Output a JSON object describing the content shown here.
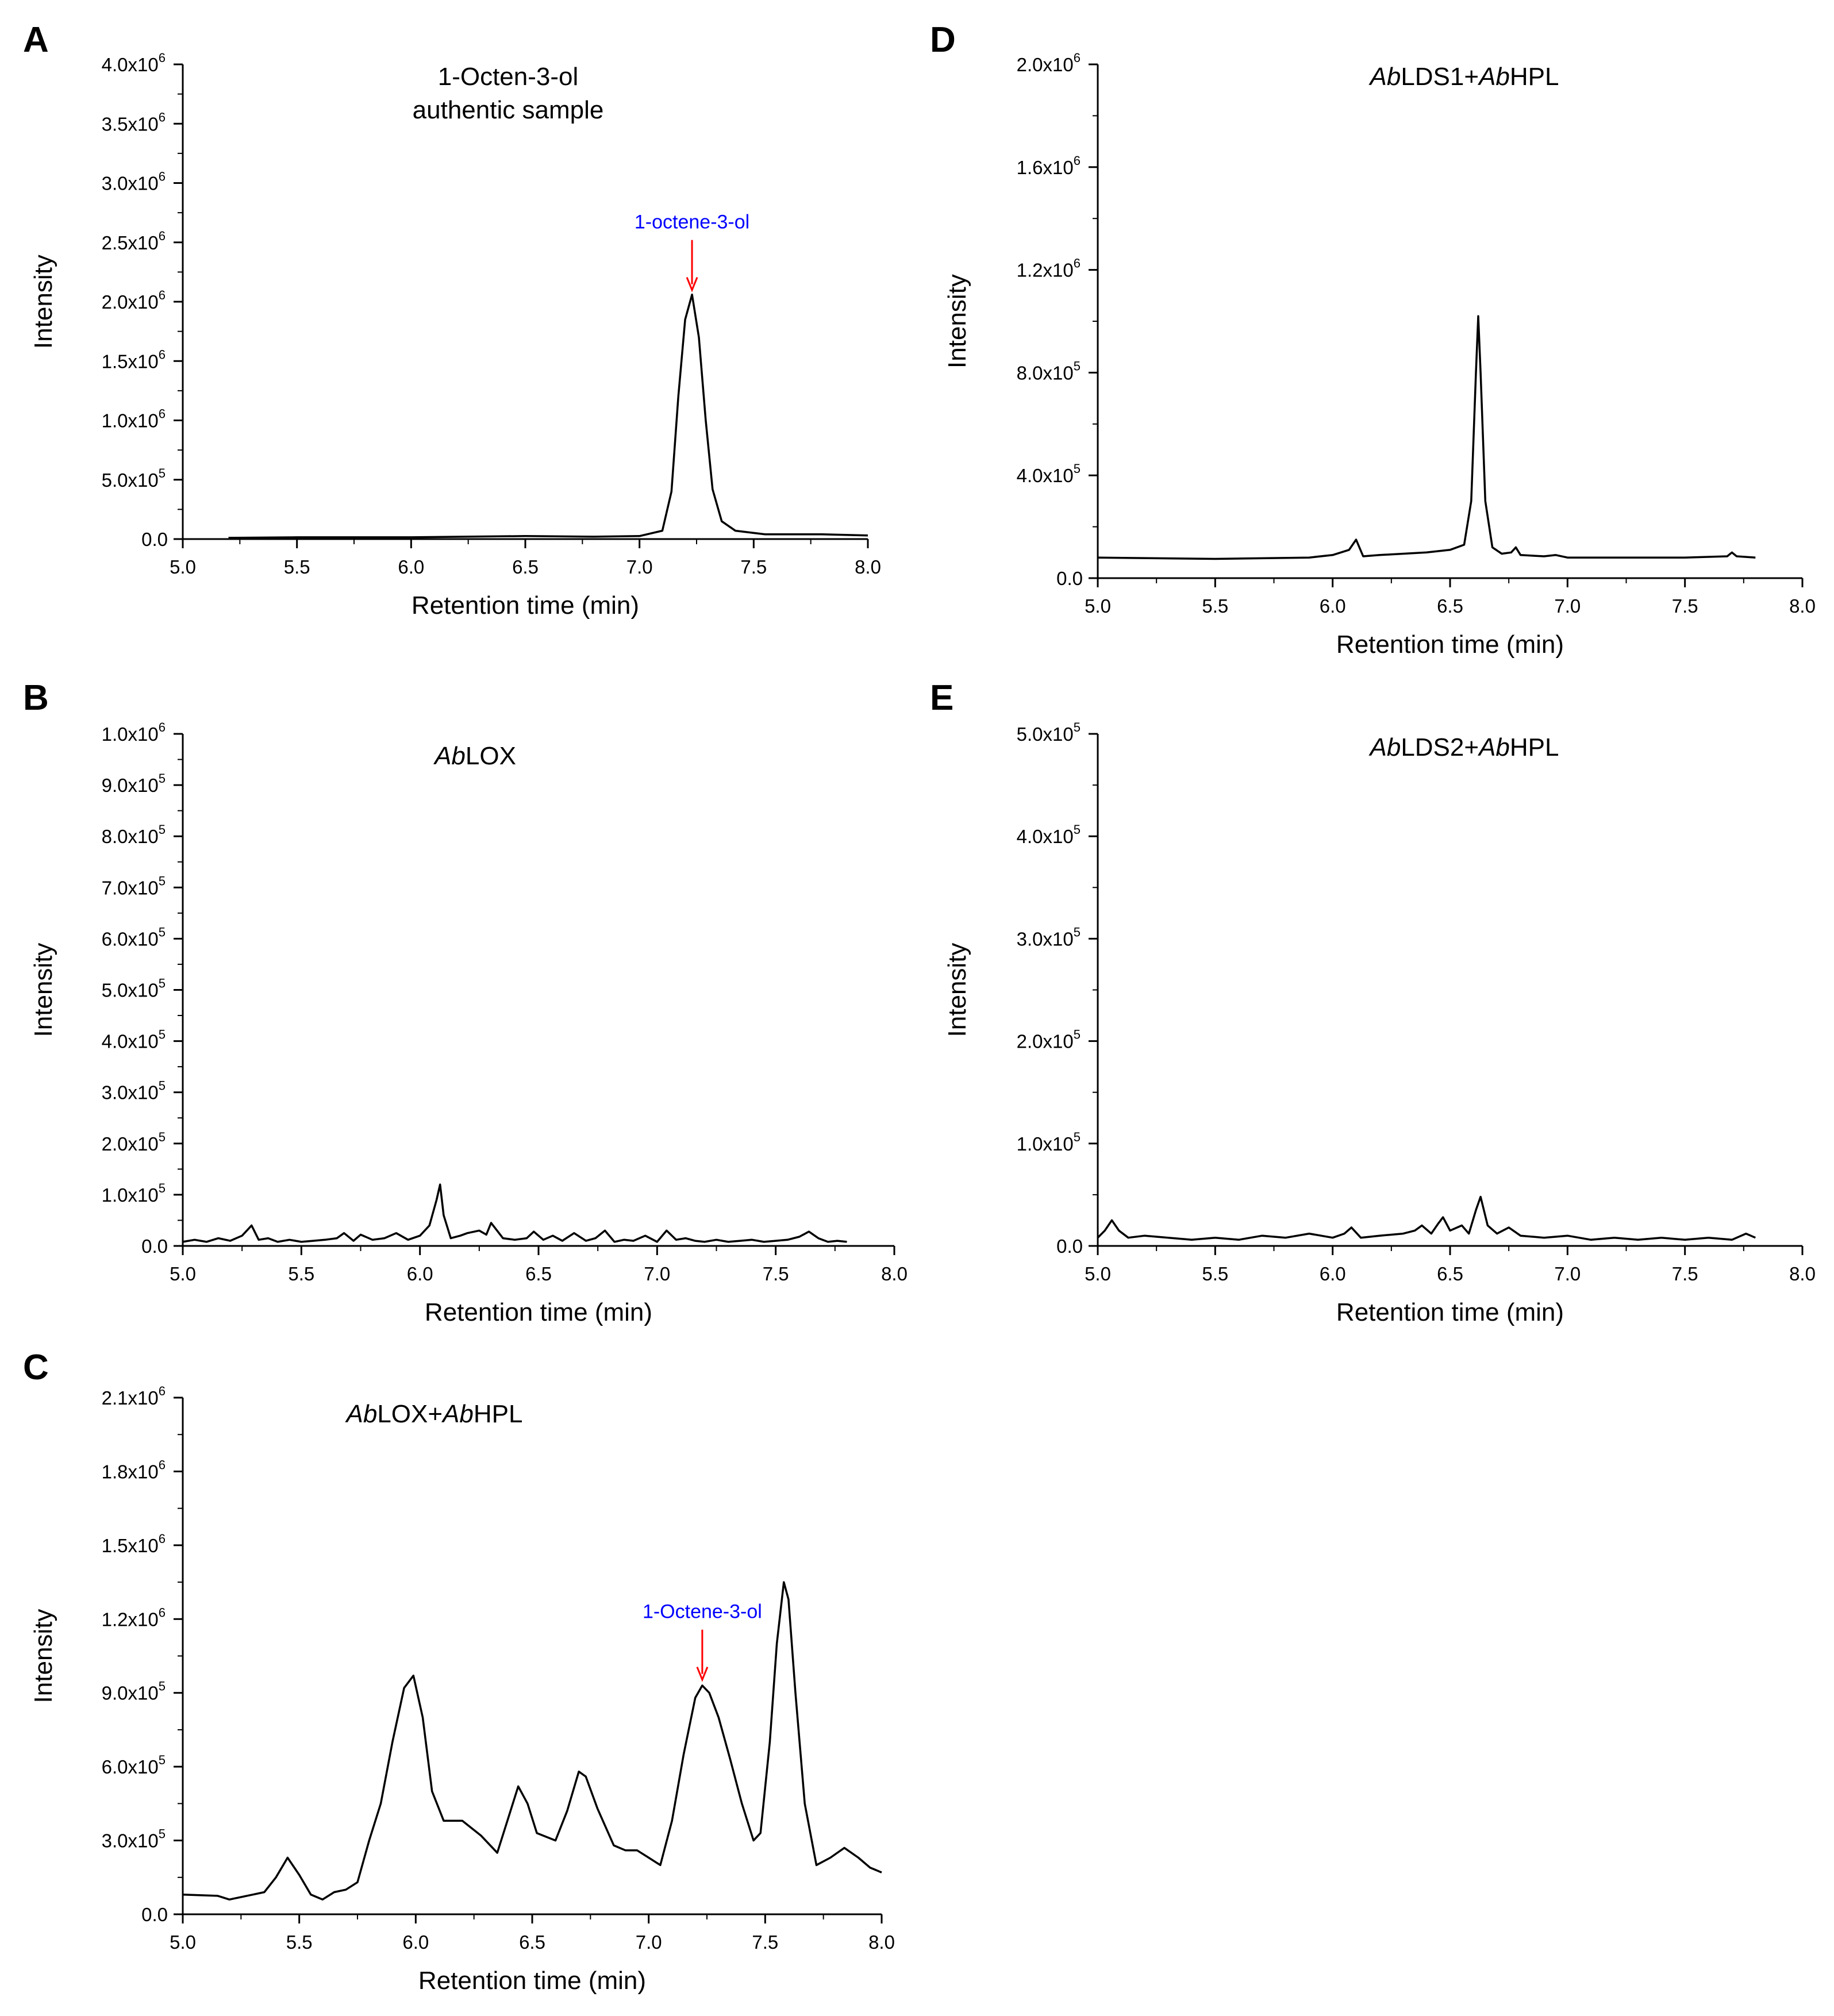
{
  "figure": {
    "panels": [
      {
        "label": "A",
        "title": [
          "1-Octen-3-ol",
          "authentic sample"
        ],
        "ylabel": "Intensity",
        "xlabel": "Retention time (min)",
        "annotations": [
          {
            "text": "1-octene-3-ol",
            "x": 7.23,
            "y": 2060000,
            "text_color": "#0000ff",
            "arrow_color": "#ff0000"
          }
        ]
      },
      {
        "label": "B",
        "title": [
          [
            "Ab",
            "LOX"
          ]
        ],
        "ylabel": "Intensity",
        "xlabel": "Retention time (min)",
        "annotations": []
      },
      {
        "label": "C",
        "title": [
          [
            "Ab",
            "LOX+",
            "Ab",
            "HPL"
          ]
        ],
        "ylabel": "Intensity",
        "xlabel": "Retention time (min)",
        "annotations": [
          {
            "text": "1-Octene-3-ol",
            "x": 7.23,
            "y": 935000,
            "text_color": "#0000ff",
            "arrow_color": "#ff0000"
          }
        ]
      },
      {
        "label": "D",
        "title": [
          [
            "Ab",
            "LDS1+",
            "Ab",
            "HPL"
          ]
        ],
        "ylabel": "Intensity",
        "xlabel": "Retention time (min)",
        "annotations": []
      },
      {
        "label": "E",
        "title": [
          [
            "Ab",
            "LDS2+",
            "Ab",
            "HPL"
          ]
        ],
        "ylabel": "Intensity",
        "xlabel": "Retention time (min)",
        "annotations": []
      }
    ]
  },
  "chart_data": [
    {
      "type": "line",
      "xlim": [
        5.0,
        8.0
      ],
      "ylim": [
        0,
        4000000
      ],
      "x_ticks": [
        5.0,
        5.5,
        6.0,
        6.5,
        7.0,
        7.5,
        8.0
      ],
      "x_tick_labels": [
        "5.0",
        "5.5",
        "6.0",
        "6.5",
        "7.0",
        "7.5",
        "8.0"
      ],
      "y_ticks": [
        0,
        500000,
        1000000,
        1500000,
        2000000,
        2500000,
        3000000,
        3500000,
        4000000
      ],
      "y_tick_labels": [
        [
          "0.0",
          ""
        ],
        [
          "5.0x10",
          "5"
        ],
        [
          "1.0x10",
          "6"
        ],
        [
          "1.5x10",
          "6"
        ],
        [
          "2.0x10",
          "6"
        ],
        [
          "2.5x10",
          "6"
        ],
        [
          "3.0x10",
          "6"
        ],
        [
          "3.5x10",
          "6"
        ],
        [
          "4.0x10",
          "6"
        ]
      ],
      "grid": false,
      "series": [
        {
          "x": [
            5.2,
            5.5,
            6.0,
            6.5,
            6.8,
            7.0,
            7.1,
            7.14,
            7.17,
            7.2,
            7.23,
            7.26,
            7.29,
            7.32,
            7.36,
            7.42,
            7.55,
            7.8,
            8.0
          ],
          "y": [
            10000,
            15000,
            15000,
            25000,
            20000,
            25000,
            70000,
            400000,
            1200000,
            1850000,
            2060000,
            1700000,
            1000000,
            420000,
            150000,
            70000,
            40000,
            40000,
            30000
          ]
        }
      ]
    },
    {
      "type": "line",
      "xlim": [
        5.0,
        8.0
      ],
      "ylim": [
        0,
        1000000
      ],
      "x_ticks": [
        5.0,
        5.5,
        6.0,
        6.5,
        7.0,
        7.5,
        8.0
      ],
      "x_tick_labels": [
        "5.0",
        "5.5",
        "6.0",
        "6.5",
        "7.0",
        "7.5",
        "8.0"
      ],
      "y_ticks": [
        0,
        100000,
        200000,
        300000,
        400000,
        500000,
        600000,
        700000,
        800000,
        900000,
        1000000
      ],
      "y_tick_labels": [
        [
          "0.0",
          ""
        ],
        [
          "1.0x10",
          "5"
        ],
        [
          "2.0x10",
          "5"
        ],
        [
          "3.0x10",
          "5"
        ],
        [
          "4.0x10",
          "5"
        ],
        [
          "5.0x10",
          "5"
        ],
        [
          "6.0x10",
          "5"
        ],
        [
          "7.0x10",
          "5"
        ],
        [
          "8.0x10",
          "5"
        ],
        [
          "9.0x10",
          "5"
        ],
        [
          "1.0x10",
          "6"
        ]
      ],
      "grid": false,
      "series": [
        {
          "x": [
            5.0,
            5.05,
            5.1,
            5.15,
            5.2,
            5.25,
            5.29,
            5.32,
            5.36,
            5.4,
            5.45,
            5.5,
            5.55,
            5.6,
            5.65,
            5.68,
            5.72,
            5.75,
            5.8,
            5.85,
            5.9,
            5.95,
            6.0,
            6.04,
            6.07,
            6.085,
            6.1,
            6.13,
            6.17,
            6.2,
            6.25,
            6.28,
            6.3,
            6.35,
            6.4,
            6.45,
            6.48,
            6.52,
            6.56,
            6.6,
            6.65,
            6.7,
            6.74,
            6.78,
            6.82,
            6.86,
            6.9,
            6.95,
            7.0,
            7.04,
            7.08,
            7.12,
            7.16,
            7.2,
            7.25,
            7.3,
            7.35,
            7.4,
            7.45,
            7.5,
            7.55,
            7.6,
            7.64,
            7.68,
            7.72,
            7.76,
            7.8
          ],
          "y": [
            8000,
            12000,
            8000,
            15000,
            10000,
            20000,
            40000,
            12000,
            15000,
            8000,
            12000,
            8000,
            10000,
            12000,
            15000,
            25000,
            10000,
            22000,
            12000,
            15000,
            25000,
            12000,
            20000,
            40000,
            90000,
            120000,
            60000,
            15000,
            20000,
            25000,
            30000,
            22000,
            45000,
            15000,
            12000,
            15000,
            28000,
            12000,
            20000,
            10000,
            25000,
            10000,
            15000,
            30000,
            8000,
            12000,
            10000,
            20000,
            8000,
            30000,
            12000,
            15000,
            10000,
            8000,
            12000,
            8000,
            10000,
            12000,
            8000,
            10000,
            12000,
            18000,
            28000,
            15000,
            8000,
            10000,
            8000
          ]
        }
      ]
    },
    {
      "type": "line",
      "xlim": [
        5.0,
        8.0
      ],
      "ylim": [
        0,
        2100000
      ],
      "x_ticks": [
        5.0,
        5.5,
        6.0,
        6.5,
        7.0,
        7.5,
        8.0
      ],
      "x_tick_labels": [
        "5.0",
        "5.5",
        "6.0",
        "6.5",
        "7.0",
        "7.5",
        "8.0"
      ],
      "y_ticks": [
        0,
        300000,
        600000,
        900000,
        1200000,
        1500000,
        1800000,
        2100000
      ],
      "y_tick_labels": [
        [
          "0.0",
          ""
        ],
        [
          "3.0x10",
          "5"
        ],
        [
          "6.0x10",
          "5"
        ],
        [
          "9.0x10",
          "5"
        ],
        [
          "1.2x10",
          "6"
        ],
        [
          "1.5x10",
          "6"
        ],
        [
          "1.8x10",
          "6"
        ],
        [
          "2.1x10",
          "6"
        ]
      ],
      "grid": false,
      "series": [
        {
          "x": [
            5.0,
            5.15,
            5.2,
            5.3,
            5.35,
            5.4,
            5.45,
            5.5,
            5.55,
            5.6,
            5.65,
            5.7,
            5.75,
            5.8,
            5.85,
            5.9,
            5.95,
            5.99,
            6.03,
            6.07,
            6.12,
            6.2,
            6.28,
            6.35,
            6.4,
            6.44,
            6.48,
            6.52,
            6.6,
            6.65,
            6.7,
            6.73,
            6.78,
            6.85,
            6.9,
            6.95,
            7.0,
            7.05,
            7.1,
            7.15,
            7.2,
            7.23,
            7.26,
            7.3,
            7.35,
            7.4,
            7.45,
            7.48,
            7.52,
            7.55,
            7.58,
            7.6,
            7.63,
            7.67,
            7.72,
            7.78,
            7.84,
            7.9,
            7.95,
            8.0
          ],
          "y": [
            80000,
            75000,
            60000,
            80000,
            90000,
            150000,
            230000,
            160000,
            80000,
            60000,
            90000,
            100000,
            130000,
            300000,
            450000,
            700000,
            920000,
            970000,
            800000,
            500000,
            380000,
            380000,
            320000,
            250000,
            400000,
            520000,
            450000,
            330000,
            300000,
            420000,
            580000,
            560000,
            430000,
            280000,
            260000,
            260000,
            230000,
            200000,
            380000,
            650000,
            880000,
            930000,
            900000,
            800000,
            630000,
            450000,
            300000,
            330000,
            700000,
            1100000,
            1350000,
            1280000,
            900000,
            450000,
            200000,
            230000,
            270000,
            230000,
            190000,
            170000
          ]
        }
      ]
    },
    {
      "type": "line",
      "xlim": [
        5.0,
        8.0
      ],
      "ylim": [
        0,
        2000000
      ],
      "x_ticks": [
        5.0,
        5.5,
        6.0,
        6.5,
        7.0,
        7.5,
        8.0
      ],
      "x_tick_labels": [
        "5.0",
        "5.5",
        "6.0",
        "6.5",
        "7.0",
        "7.5",
        "8.0"
      ],
      "y_ticks": [
        0,
        400000,
        800000,
        1200000,
        1600000,
        2000000
      ],
      "y_tick_labels": [
        [
          "0.0",
          ""
        ],
        [
          "4.0x10",
          "5"
        ],
        [
          "8.0x10",
          "5"
        ],
        [
          "1.2x10",
          "6"
        ],
        [
          "1.6x10",
          "6"
        ],
        [
          "2.0x10",
          "6"
        ]
      ],
      "grid": false,
      "series": [
        {
          "x": [
            5.0,
            5.5,
            5.9,
            6.0,
            6.07,
            6.1,
            6.13,
            6.2,
            6.4,
            6.5,
            6.56,
            6.59,
            6.61,
            6.62,
            6.63,
            6.65,
            6.68,
            6.72,
            6.76,
            6.78,
            6.8,
            6.9,
            6.95,
            7.0,
            7.5,
            7.68,
            7.7,
            7.72,
            7.8
          ],
          "y": [
            80000,
            75000,
            80000,
            90000,
            110000,
            150000,
            85000,
            90000,
            100000,
            110000,
            130000,
            300000,
            800000,
            1020000,
            800000,
            300000,
            120000,
            95000,
            100000,
            120000,
            90000,
            85000,
            90000,
            80000,
            80000,
            85000,
            100000,
            85000,
            80000
          ]
        }
      ]
    },
    {
      "type": "line",
      "xlim": [
        5.0,
        8.0
      ],
      "ylim": [
        0,
        500000
      ],
      "x_ticks": [
        5.0,
        5.5,
        6.0,
        6.5,
        7.0,
        7.5,
        8.0
      ],
      "x_tick_labels": [
        "5.0",
        "5.5",
        "6.0",
        "6.5",
        "7.0",
        "7.5",
        "8.0"
      ],
      "y_ticks": [
        0,
        100000,
        200000,
        300000,
        400000,
        500000
      ],
      "y_tick_labels": [
        [
          "0.0",
          ""
        ],
        [
          "1.0x10",
          "5"
        ],
        [
          "2.0x10",
          "5"
        ],
        [
          "3.0x10",
          "5"
        ],
        [
          "4.0x10",
          "5"
        ],
        [
          "5.0x10",
          "5"
        ]
      ],
      "grid": false,
      "series": [
        {
          "x": [
            5.0,
            5.03,
            5.06,
            5.09,
            5.13,
            5.2,
            5.3,
            5.4,
            5.5,
            5.6,
            5.7,
            5.8,
            5.9,
            6.0,
            6.05,
            6.08,
            6.12,
            6.2,
            6.3,
            6.35,
            6.38,
            6.42,
            6.45,
            6.47,
            6.5,
            6.55,
            6.58,
            6.61,
            6.63,
            6.66,
            6.7,
            6.75,
            6.8,
            6.9,
            7.0,
            7.1,
            7.2,
            7.3,
            7.4,
            7.5,
            7.6,
            7.7,
            7.76,
            7.8
          ],
          "y": [
            8000,
            15000,
            25000,
            15000,
            8000,
            10000,
            8000,
            6000,
            8000,
            6000,
            10000,
            8000,
            12000,
            8000,
            12000,
            18000,
            8000,
            10000,
            12000,
            15000,
            20000,
            12000,
            22000,
            28000,
            15000,
            20000,
            12000,
            35000,
            48000,
            20000,
            12000,
            18000,
            10000,
            8000,
            10000,
            6000,
            8000,
            6000,
            8000,
            6000,
            8000,
            6000,
            12000,
            8000
          ]
        }
      ]
    }
  ]
}
